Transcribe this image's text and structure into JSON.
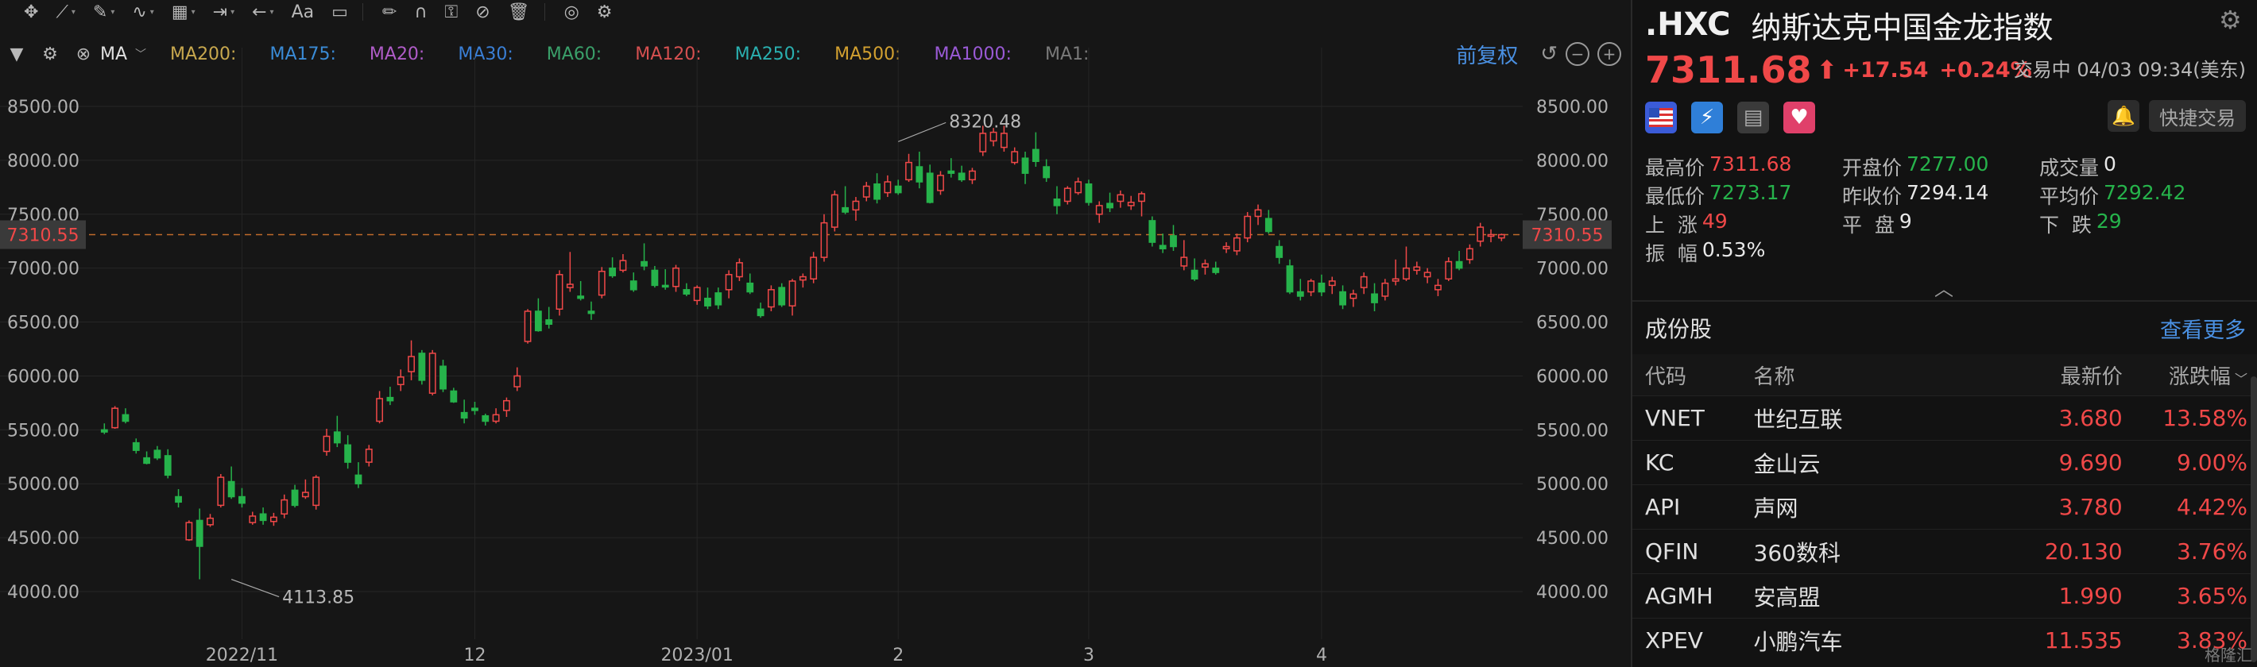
{
  "toolbar": {
    "icons": [
      "move-icon",
      "trendline-icon",
      "pen-icon",
      "wave-icon",
      "measure-icon",
      "range-icon",
      "undo-icon",
      "text-icon",
      "comment-icon",
      "pencil-icon",
      "magnet-icon",
      "lock-icon",
      "eye-off-icon",
      "trash-icon",
      "layers-icon",
      "settings-icon"
    ],
    "text_tool": "Aa"
  },
  "ma_bar": {
    "indicator": "MA",
    "items": [
      {
        "label": "MA200:",
        "color": "#c8a84e"
      },
      {
        "label": "MA175:",
        "color": "#3a8bd6"
      },
      {
        "label": "MA20:",
        "color": "#b05cc8"
      },
      {
        "label": "MA30:",
        "color": "#3a7fd6"
      },
      {
        "label": "MA60:",
        "color": "#3aa06a"
      },
      {
        "label": "MA120:",
        "color": "#d65050"
      },
      {
        "label": "MA250:",
        "color": "#2ab0b0"
      },
      {
        "label": "MA500:",
        "color": "#d2a030"
      },
      {
        "label": "MA1000:",
        "color": "#9a5ad6"
      },
      {
        "label": "MA1:",
        "color": "#7a7a7a"
      }
    ],
    "adjust_label": "前复权"
  },
  "chart_data": {
    "type": "candlestick",
    "y_ticks": [
      "8500.00",
      "8000.00",
      "7500.00",
      "7000.00",
      "6500.00",
      "6000.00",
      "5500.00",
      "5000.00",
      "4500.00",
      "4000.00"
    ],
    "y_tick_values": [
      8500,
      8000,
      7500,
      7000,
      6500,
      6000,
      5500,
      5000,
      4500,
      4000
    ],
    "x_ticks": [
      {
        "label": "2022/11",
        "index": 13
      },
      {
        "label": "12",
        "index": 35
      },
      {
        "label": "2023/01",
        "index": 56
      },
      {
        "label": "2",
        "index": 75
      },
      {
        "label": "3",
        "index": 93
      },
      {
        "label": "4",
        "index": 115
      }
    ],
    "last_price_label": "7310.55",
    "last_price": 7310.55,
    "high_annotation": "8320.48",
    "high_index": 75,
    "low_annotation": "4113.85",
    "low_index": 12,
    "ohlc": [
      [
        5500,
        5560,
        5460,
        5480
      ],
      [
        5520,
        5720,
        5510,
        5700
      ],
      [
        5640,
        5700,
        5560,
        5580
      ],
      [
        5380,
        5420,
        5280,
        5310
      ],
      [
        5240,
        5300,
        5180,
        5190
      ],
      [
        5310,
        5350,
        5220,
        5240
      ],
      [
        5260,
        5320,
        5050,
        5080
      ],
      [
        4880,
        4950,
        4780,
        4830
      ],
      [
        4480,
        4660,
        4470,
        4640
      ],
      [
        4660,
        4770,
        4113.85,
        4420
      ],
      [
        4620,
        4720,
        4600,
        4680
      ],
      [
        4800,
        5090,
        4780,
        5060
      ],
      [
        5020,
        5160,
        4860,
        4880
      ],
      [
        4880,
        4960,
        4780,
        4820
      ],
      [
        4640,
        4740,
        4620,
        4700
      ],
      [
        4720,
        4780,
        4620,
        4660
      ],
      [
        4650,
        4730,
        4610,
        4690
      ],
      [
        4720,
        4900,
        4680,
        4850
      ],
      [
        4940,
        4990,
        4780,
        4800
      ],
      [
        4880,
        5040,
        4860,
        4920
      ],
      [
        4800,
        5080,
        4760,
        5060
      ],
      [
        5300,
        5510,
        5260,
        5440
      ],
      [
        5480,
        5630,
        5340,
        5380
      ],
      [
        5360,
        5450,
        5140,
        5200
      ],
      [
        5080,
        5200,
        4960,
        5000
      ],
      [
        5200,
        5360,
        5160,
        5320
      ],
      [
        5580,
        5860,
        5560,
        5790
      ],
      [
        5800,
        5900,
        5730,
        5770
      ],
      [
        5920,
        6060,
        5860,
        5990
      ],
      [
        6040,
        6330,
        5960,
        6180
      ],
      [
        6210,
        6240,
        5920,
        5960
      ],
      [
        5840,
        6240,
        5820,
        6210
      ],
      [
        6090,
        6150,
        5850,
        5880
      ],
      [
        5860,
        5890,
        5750,
        5760
      ],
      [
        5660,
        5780,
        5560,
        5610
      ],
      [
        5700,
        5760,
        5640,
        5680
      ],
      [
        5630,
        5650,
        5540,
        5580
      ],
      [
        5580,
        5700,
        5560,
        5640
      ],
      [
        5680,
        5800,
        5620,
        5770
      ],
      [
        5900,
        6080,
        5860,
        6000
      ],
      [
        6320,
        6620,
        6300,
        6600
      ],
      [
        6600,
        6720,
        6410,
        6420
      ],
      [
        6520,
        6640,
        6440,
        6480
      ],
      [
        6620,
        6980,
        6560,
        6940
      ],
      [
        6820,
        7150,
        6780,
        6850
      ],
      [
        6740,
        6880,
        6700,
        6720
      ],
      [
        6600,
        6690,
        6520,
        6580
      ],
      [
        6750,
        7010,
        6720,
        6970
      ],
      [
        7000,
        7100,
        6910,
        6930
      ],
      [
        6980,
        7130,
        6960,
        7070
      ],
      [
        6880,
        6960,
        6780,
        6800
      ],
      [
        7060,
        7230,
        6980,
        7020
      ],
      [
        6980,
        7020,
        6820,
        6840
      ],
      [
        6840,
        6990,
        6800,
        6830
      ],
      [
        6830,
        7030,
        6780,
        7000
      ],
      [
        6800,
        6860,
        6740,
        6760
      ],
      [
        6700,
        6840,
        6660,
        6820
      ],
      [
        6720,
        6820,
        6620,
        6650
      ],
      [
        6770,
        6820,
        6620,
        6660
      ],
      [
        6800,
        6980,
        6720,
        6940
      ],
      [
        6920,
        7090,
        6880,
        7050
      ],
      [
        6860,
        6950,
        6760,
        6780
      ],
      [
        6620,
        6680,
        6540,
        6560
      ],
      [
        6640,
        6840,
        6600,
        6800
      ],
      [
        6820,
        6860,
        6640,
        6660
      ],
      [
        6650,
        6900,
        6560,
        6880
      ],
      [
        6890,
        6950,
        6820,
        6920
      ],
      [
        6900,
        7150,
        6860,
        7100
      ],
      [
        7100,
        7500,
        7060,
        7420
      ],
      [
        7380,
        7720,
        7340,
        7680
      ],
      [
        7560,
        7760,
        7500,
        7520
      ],
      [
        7540,
        7660,
        7440,
        7620
      ],
      [
        7660,
        7800,
        7620,
        7760
      ],
      [
        7780,
        7880,
        7600,
        7640
      ],
      [
        7700,
        7860,
        7660,
        7800
      ],
      [
        7760,
        7820,
        7680,
        7700
      ],
      [
        7820,
        8060,
        7800,
        7980
      ],
      [
        7940,
        8080,
        7740,
        7800
      ],
      [
        7880,
        7960,
        7600,
        7610
      ],
      [
        7720,
        7900,
        7680,
        7860
      ],
      [
        7900,
        8020,
        7840,
        7880
      ],
      [
        7880,
        7950,
        7800,
        7820
      ],
      [
        7820,
        7930,
        7780,
        7900
      ],
      [
        8080,
        8320.48,
        8040,
        8250
      ],
      [
        8180,
        8300,
        8130,
        8260
      ],
      [
        8120,
        8320.48,
        8080,
        8250
      ],
      [
        7980,
        8120,
        7960,
        8080
      ],
      [
        8020,
        8080,
        7780,
        7880
      ],
      [
        8100,
        8260,
        7940,
        7990
      ],
      [
        7940,
        8010,
        7800,
        7840
      ],
      [
        7640,
        7760,
        7500,
        7580
      ],
      [
        7620,
        7760,
        7590,
        7740
      ],
      [
        7700,
        7840,
        7680,
        7800
      ],
      [
        7780,
        7820,
        7580,
        7610
      ],
      [
        7500,
        7620,
        7420,
        7580
      ],
      [
        7600,
        7700,
        7520,
        7560
      ],
      [
        7620,
        7720,
        7560,
        7680
      ],
      [
        7580,
        7670,
        7540,
        7610
      ],
      [
        7620,
        7710,
        7480,
        7690
      ],
      [
        7440,
        7480,
        7200,
        7240
      ],
      [
        7210,
        7320,
        7140,
        7180
      ],
      [
        7300,
        7400,
        7160,
        7200
      ],
      [
        7020,
        7260,
        6980,
        7100
      ],
      [
        6980,
        7090,
        6880,
        6900
      ],
      [
        7010,
        7080,
        6940,
        7040
      ],
      [
        7000,
        7060,
        6940,
        6960
      ],
      [
        7180,
        7240,
        7140,
        7200
      ],
      [
        7160,
        7320,
        7120,
        7280
      ],
      [
        7280,
        7520,
        7240,
        7480
      ],
      [
        7480,
        7590,
        7400,
        7540
      ],
      [
        7460,
        7540,
        7320,
        7340
      ],
      [
        7200,
        7260,
        7040,
        7100
      ],
      [
        7020,
        7080,
        6760,
        6780
      ],
      [
        6780,
        6900,
        6700,
        6740
      ],
      [
        6780,
        6900,
        6740,
        6880
      ],
      [
        6860,
        6940,
        6740,
        6780
      ],
      [
        6840,
        6920,
        6760,
        6880
      ],
      [
        6780,
        6840,
        6620,
        6660
      ],
      [
        6720,
        6800,
        6640,
        6760
      ],
      [
        6820,
        6960,
        6760,
        6920
      ],
      [
        6760,
        6860,
        6600,
        6680
      ],
      [
        6740,
        6900,
        6700,
        6860
      ],
      [
        6880,
        7080,
        6840,
        6900
      ],
      [
        6900,
        7200,
        6880,
        7000
      ],
      [
        6980,
        7060,
        6940,
        7010
      ],
      [
        6920,
        7000,
        6860,
        6960
      ],
      [
        6800,
        6900,
        6740,
        6840
      ],
      [
        6900,
        7100,
        6880,
        7060
      ],
      [
        7060,
        7160,
        6980,
        7000
      ],
      [
        7080,
        7220,
        7040,
        7180
      ],
      [
        7250,
        7420,
        7200,
        7380
      ],
      [
        7300,
        7360,
        7240,
        7310.55
      ],
      [
        7280,
        7320,
        7250,
        7310.55
      ]
    ]
  },
  "quote": {
    "symbol": ".HXC",
    "name": "纳斯达克中国金龙指数",
    "price": "7311.68",
    "change": "+17.54",
    "change_pct": "+0.24%",
    "status": "交易中 04/03 09:34(美东)",
    "quick_trade": "快捷交易",
    "stats": [
      [
        {
          "label": "最高价",
          "value": "7311.68",
          "tone": "red"
        },
        {
          "label": "开盘价",
          "value": "7277.00",
          "tone": "green"
        },
        {
          "label": "成交量",
          "value": "0",
          "tone": "white"
        }
      ],
      [
        {
          "label": "最低价",
          "value": "7273.17",
          "tone": "green"
        },
        {
          "label": "昨收价",
          "value": "7294.14",
          "tone": "white"
        },
        {
          "label": "平均价",
          "value": "7292.42",
          "tone": "green"
        }
      ],
      [
        {
          "label": "上  涨",
          "value": "49",
          "tone": "red"
        },
        {
          "label": "平  盘",
          "value": "9",
          "tone": "white"
        },
        {
          "label": "下  跌",
          "value": "29",
          "tone": "green"
        }
      ],
      [
        {
          "label": "振  幅",
          "value": "0.53%",
          "tone": "white"
        }
      ]
    ]
  },
  "components": {
    "title": "成份股",
    "more": "查看更多",
    "headers": {
      "code": "代码",
      "name": "名称",
      "price": "最新价",
      "pct": "涨跌幅"
    },
    "rows": [
      {
        "code": "VNET",
        "name": "世纪互联",
        "price": "3.680",
        "pct": "13.58%"
      },
      {
        "code": "KC",
        "name": "金山云",
        "price": "9.690",
        "pct": "9.00%"
      },
      {
        "code": "API",
        "name": "声网",
        "price": "3.780",
        "pct": "4.42%"
      },
      {
        "code": "QFIN",
        "name": "360数科",
        "price": "20.130",
        "pct": "3.76%"
      },
      {
        "code": "AGMH",
        "name": "安高盟",
        "price": "1.990",
        "pct": "3.65%"
      },
      {
        "code": "XPEV",
        "name": "小鹏汽车",
        "price": "11.535",
        "pct": "3.83%"
      }
    ]
  },
  "watermark": "格隆汇",
  "colors": {
    "up": "#f04848",
    "down": "#26b34b",
    "accent": "#4a90e2"
  }
}
